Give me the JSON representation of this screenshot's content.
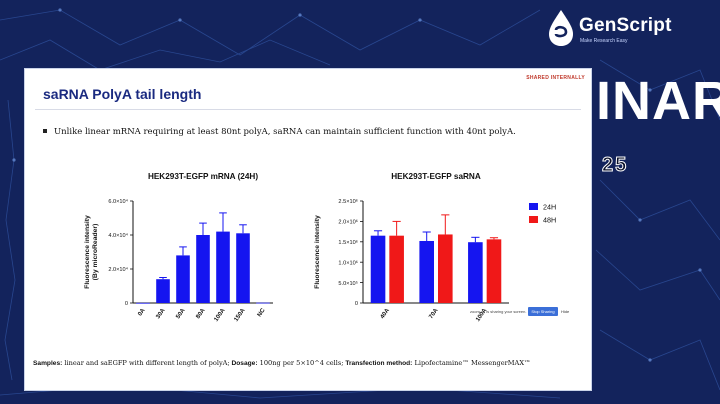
{
  "brand": {
    "name": "GenScript",
    "tagline": "Make Research Easy"
  },
  "background_text": {
    "word": "INAR",
    "year": "25"
  },
  "slide": {
    "badge": "SHARED INTERNALLY",
    "title": "saRNA PolyA tail length",
    "bullet": "Unlike linear mRNA requiring at least 80nt polyA, saRNA can maintain sufficient function with 40nt polyA.",
    "footer": {
      "samples_label": "Samples:",
      "samples_text": " linear and saEGFP with different length of polyA;",
      "dosage_label": " Dosage:",
      "dosage_text": " 100ng per 5×10^4 cells;",
      "method_label": " Transfection method:",
      "method_text": " Lipofectamine™ MessengerMAX™"
    }
  },
  "controls": {
    "note": "zoom.us is sharing your screen.",
    "stop": "Stop Sharing",
    "hide": "Hide"
  },
  "chart_data": [
    {
      "type": "bar",
      "title": "HEK293T-EGFP mRNA (24H)",
      "ylabel": "Fluorescence intensity\n(By microReader)",
      "categories": [
        "0A",
        "30A",
        "50A",
        "80A",
        "100A",
        "150A",
        "NC"
      ],
      "values": [
        100,
        14000,
        28000,
        40000,
        42000,
        41000,
        200
      ],
      "errors": [
        0,
        1000,
        5000,
        7000,
        11000,
        5000,
        0
      ],
      "ylim": [
        0,
        60000
      ],
      "ytick_values": [
        0,
        20000,
        40000,
        60000
      ],
      "yticks": [
        "0",
        "2.0×10⁴",
        "4.0×10⁴",
        "6.0×10⁴"
      ],
      "color": "#1515f0"
    },
    {
      "type": "bar",
      "title": "HEK293T-EGFP saRNA",
      "ylabel": "Fluorescence intensity",
      "categories": [
        "40A",
        "70A",
        "100A"
      ],
      "series": [
        {
          "name": "24H",
          "color": "#1515f0",
          "values": [
            1650000,
            1520000,
            1490000
          ],
          "errors": [
            120000,
            220000,
            120000
          ]
        },
        {
          "name": "48H",
          "color": "#f01818",
          "values": [
            1650000,
            1680000,
            1560000
          ],
          "errors": [
            350000,
            480000,
            40000
          ]
        }
      ],
      "ylim": [
        0,
        2500000
      ],
      "ytick_values": [
        0,
        500000,
        1000000,
        1500000,
        2000000,
        2500000
      ],
      "yticks": [
        "0",
        "5.0×10⁵",
        "1.0×10⁶",
        "1.5×10⁶",
        "2.0×10⁶",
        "2.5×10⁶"
      ]
    }
  ]
}
